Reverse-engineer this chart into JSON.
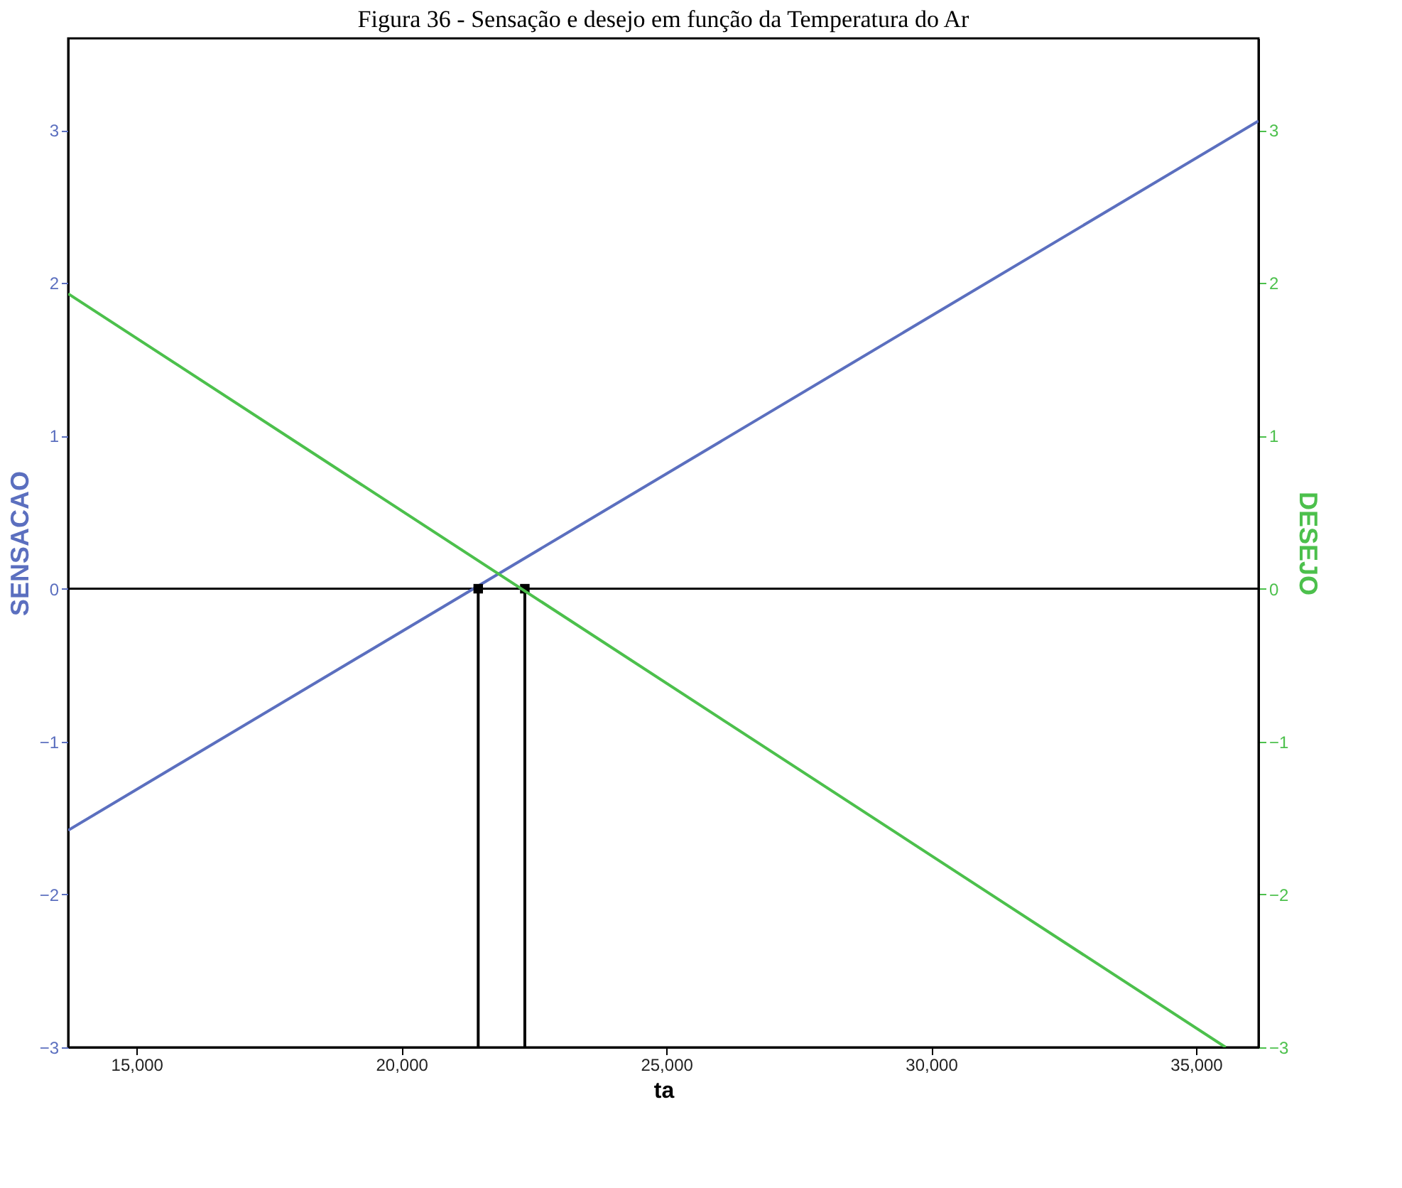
{
  "chart_data": {
    "type": "line",
    "title": "Figura 36 - Sensação e desejo em função da Temperatura do Ar",
    "xlabel": "ta",
    "ylabel": "SENSACAO",
    "y2label": "DESEJO",
    "xlim": [
      13710,
      36180
    ],
    "xticks": [
      {
        "value": 15000,
        "label": "15,000"
      },
      {
        "value": 20000,
        "label": "20,000"
      },
      {
        "value": 25000,
        "label": "25,000"
      },
      {
        "value": 30000,
        "label": "30,000"
      },
      {
        "value": 35000,
        "label": "35,000"
      }
    ],
    "ylim": [
      -3,
      3.6
    ],
    "yticks": [
      -3,
      -2,
      -1,
      0,
      1,
      2,
      3
    ],
    "y2lim": [
      -3,
      3.6
    ],
    "y2ticks": [
      -3,
      -2,
      -1,
      0,
      1,
      2,
      3
    ],
    "series": [
      {
        "color": "#5b6fbf",
        "x": [
          13710,
          36180
        ],
        "values": [
          -1.58,
          3.06
        ]
      },
      {
        "color": "#4cc04c",
        "axis": "y2",
        "x": [
          13710,
          35560
        ],
        "values": [
          1.93,
          -3.0
        ]
      },
      {
        "color": "#000000",
        "x": [
          21450,
          21450
        ],
        "values": [
          0,
          -3
        ]
      },
      {
        "color": "#000000",
        "x": [
          22330,
          22330
        ],
        "values": [
          0,
          -3
        ]
      },
      {
        "type": "scatter",
        "marker": "square",
        "color": "#000000",
        "x": [
          21450,
          22330
        ],
        "values": [
          0,
          0
        ]
      }
    ],
    "ref_lines": [
      {
        "axis": "y",
        "value": 0,
        "color": "#000000"
      }
    ],
    "grid": false
  }
}
